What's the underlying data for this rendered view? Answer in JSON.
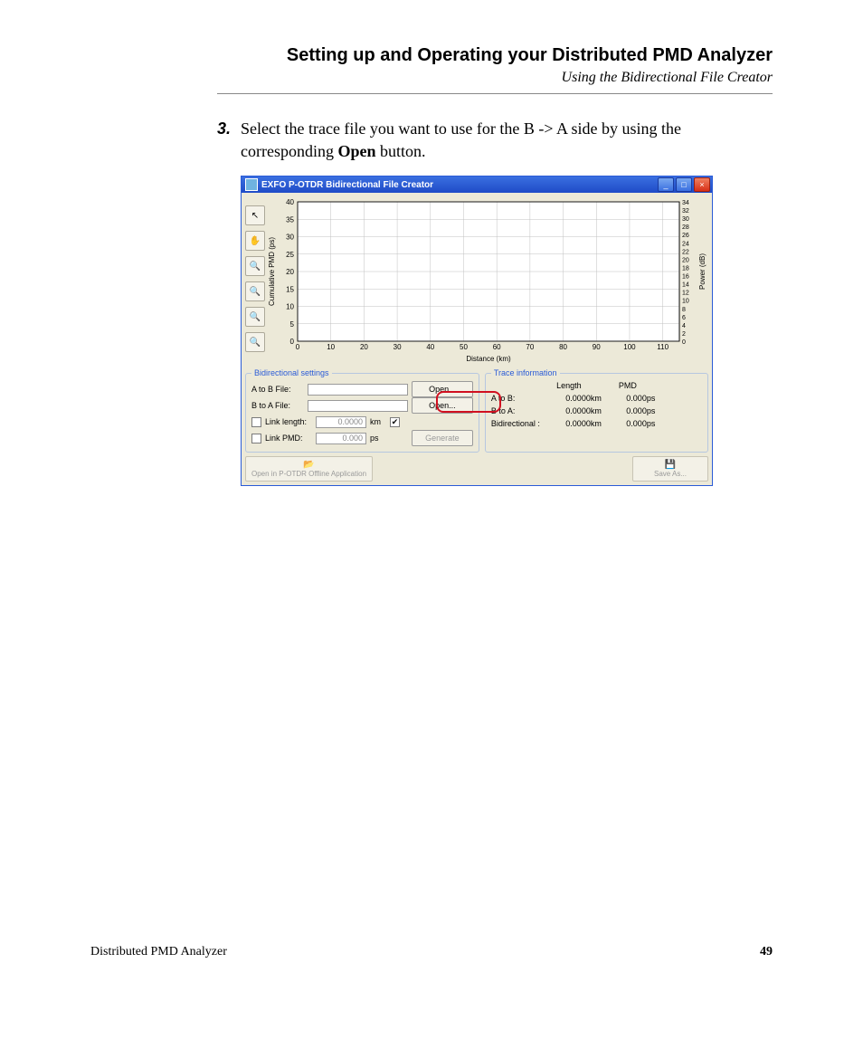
{
  "header": {
    "title": "Setting up and Operating your Distributed PMD Analyzer",
    "subtitle": "Using the Bidirectional File Creator"
  },
  "step": {
    "number": "3.",
    "text_before": "Select the trace file you want to use for the B -> A side by using the corresponding ",
    "bold": "Open",
    "text_after": " button."
  },
  "window": {
    "title": "EXFO P-OTDR Bidirectional File Creator",
    "title_bg": "#2a5bd7",
    "body_bg": "#ece9d8",
    "border_color": "#2a5bd7"
  },
  "chart": {
    "type": "line",
    "x_label": "Distance (km)",
    "y_left_label": "Cumulative PMD (ps)",
    "y_right_label": "Power (dB)",
    "x_ticks": [
      0,
      10,
      20,
      30,
      40,
      50,
      60,
      70,
      80,
      90,
      100,
      110
    ],
    "y_left_ticks": [
      0,
      5,
      10,
      15,
      20,
      25,
      30,
      35,
      40
    ],
    "y_right_ticks": [
      0,
      2,
      4,
      6,
      8,
      10,
      12,
      14,
      16,
      18,
      20,
      22,
      24,
      26,
      28,
      30,
      32,
      34
    ],
    "xlim": [
      0,
      115
    ],
    "ylim_left": [
      0,
      40
    ],
    "ylim_right": [
      0,
      34
    ],
    "background_color": "#ffffff",
    "grid_color": "#c0c0c0",
    "axis_color": "#000000",
    "label_fontsize": 8
  },
  "tools": [
    {
      "name": "pointer-icon",
      "glyph": "↖"
    },
    {
      "name": "hand-icon",
      "glyph": "✋"
    },
    {
      "name": "zoom-in-icon",
      "glyph": "🔍"
    },
    {
      "name": "zoom-out-icon",
      "glyph": "🔍"
    },
    {
      "name": "zoom-fit-icon",
      "glyph": "🔍"
    },
    {
      "name": "zoom-reset-icon",
      "glyph": "🔍"
    }
  ],
  "bidi": {
    "legend": "Bidirectional settings",
    "a_to_b_label": "A to B File:",
    "b_to_a_label": "B to A File:",
    "open_label": "Open...",
    "link_length_label": "Link length:",
    "link_length_value": "0.0000",
    "link_length_unit": "km",
    "link_pmd_label": "Link PMD:",
    "link_pmd_value": "0.000",
    "link_pmd_unit": "ps",
    "generate_label": "Generate"
  },
  "trace": {
    "legend": "Trace information",
    "length_header": "Length",
    "pmd_header": "PMD",
    "rows": [
      {
        "label": "A to B:",
        "len": "0.0000",
        "len_unit": "km",
        "pmd": "0.000",
        "pmd_unit": "ps"
      },
      {
        "label": "B to A:",
        "len": "0.0000",
        "len_unit": "km",
        "pmd": "0.000",
        "pmd_unit": "ps"
      },
      {
        "label": "Bidirectional :",
        "len": "0.0000",
        "len_unit": "km",
        "pmd": "0.000",
        "pmd_unit": "ps"
      }
    ]
  },
  "bottom": {
    "open_offline": "Open in P-OTDR\nOffline Application",
    "save_as": "Save As..."
  },
  "callout_color": "#d01020",
  "footer": {
    "left": "Distributed PMD Analyzer",
    "page": "49"
  }
}
